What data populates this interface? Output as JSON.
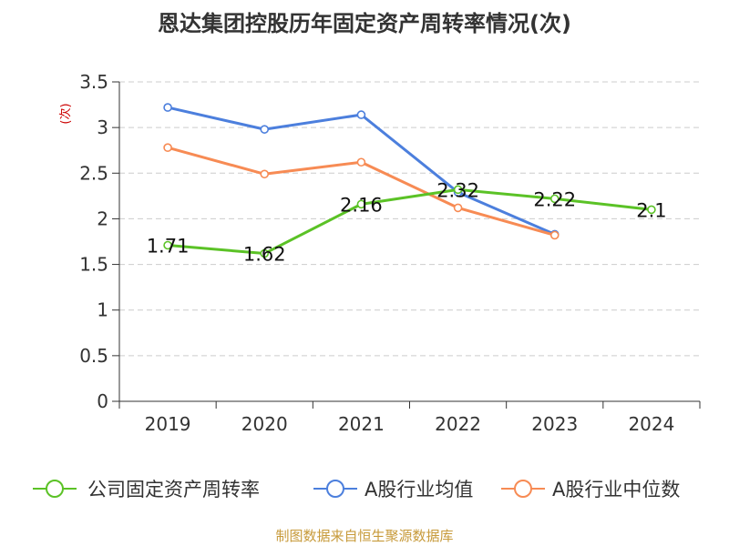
{
  "title": "恩达集团控股历年固定资产周转率情况(次)",
  "source": "制图数据来自恒生聚源数据库",
  "chart_data": {
    "type": "line",
    "title": "恩达集团控股历年固定资产周转率情况(次)",
    "ylabel": "(次)",
    "categories": [
      "2019",
      "2020",
      "2021",
      "2022",
      "2023",
      "2024"
    ],
    "ylim": [
      0,
      3.5
    ],
    "yticks": [
      0,
      0.5,
      1,
      1.5,
      2,
      2.5,
      3,
      3.5
    ],
    "ytick_labels": [
      "0",
      "0.5",
      "1",
      "1.5",
      "2",
      "2.5",
      "3",
      "3.5"
    ],
    "grid": "horizontal dashed",
    "legend": "bottom",
    "series": [
      {
        "name": "公司固定资产周转率",
        "color": "#5bc226",
        "values": [
          1.71,
          1.62,
          2.16,
          2.32,
          2.22,
          2.1
        ],
        "labels": [
          "1.71",
          "1.62",
          "2.16",
          "2.32",
          "2.22",
          "2.1"
        ]
      },
      {
        "name": "A股行业均值",
        "color": "#4c7fdd",
        "values": [
          3.22,
          2.98,
          3.14,
          2.29,
          1.83,
          null
        ]
      },
      {
        "name": "A股行业中位数",
        "color": "#f78b54",
        "values": [
          2.78,
          2.49,
          2.62,
          2.12,
          1.82,
          null
        ]
      }
    ]
  }
}
